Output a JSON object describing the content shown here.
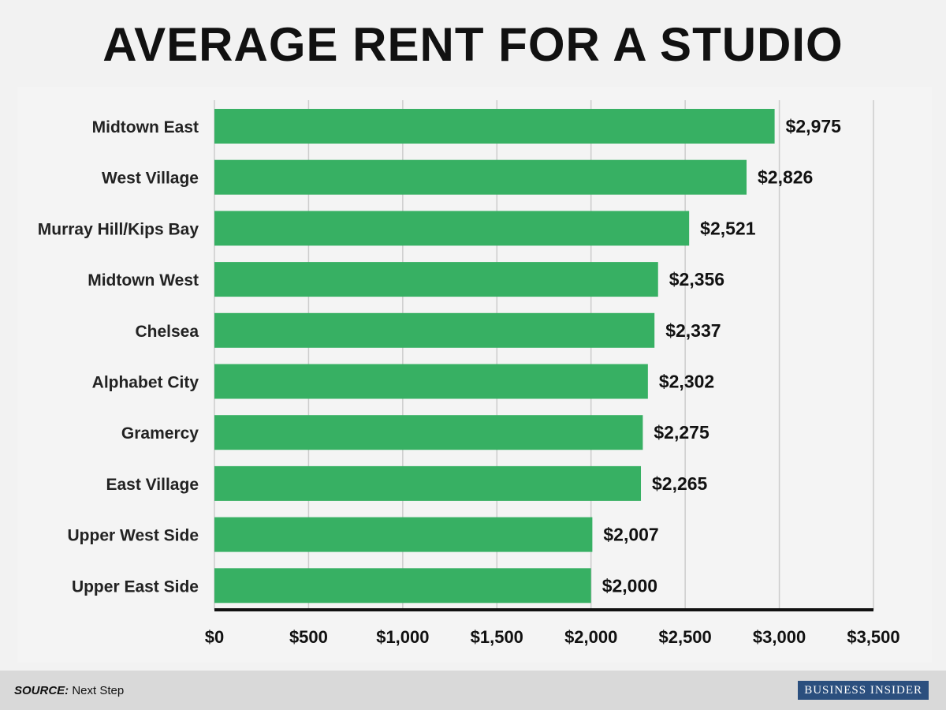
{
  "title": "AVERAGE RENT FOR A STUDIO",
  "footer": {
    "source_label": "SOURCE:",
    "source_text": "Next Step",
    "brand": "Business Insider"
  },
  "colors": {
    "bar": "#37b063",
    "background": "#f2f2f2",
    "plot_background": "#f4f4f4",
    "gridline": "#cccccc",
    "axis": "#111111",
    "footer_background": "#d9d9d9",
    "brand_background": "#2b4f7e"
  },
  "chart_data": {
    "type": "bar",
    "orientation": "horizontal",
    "title": "AVERAGE RENT FOR A STUDIO",
    "xlabel": "",
    "ylabel": "",
    "categories": [
      "Midtown East",
      "West Village",
      "Murray Hill/Kips Bay",
      "Midtown West",
      "Chelsea",
      "Alphabet City",
      "Gramercy",
      "East Village",
      "Upper West Side",
      "Upper East Side"
    ],
    "values": [
      2975,
      2826,
      2521,
      2356,
      2337,
      2302,
      2275,
      2265,
      2007,
      2000
    ],
    "value_labels": [
      "$2,975",
      "$2,826",
      "$2,521",
      "$2,356",
      "$2,337",
      "$2,302",
      "$2,275",
      "$2,265",
      "$2,007",
      "$2,000"
    ],
    "xlim": [
      0,
      3500
    ],
    "x_ticks": [
      0,
      500,
      1000,
      1500,
      2000,
      2500,
      3000,
      3500
    ],
    "x_tick_labels": [
      "$0",
      "$500",
      "$1,000",
      "$1,500",
      "$2,000",
      "$2,500",
      "$3,000",
      "$3,500"
    ],
    "grid": true,
    "legend": "none"
  }
}
